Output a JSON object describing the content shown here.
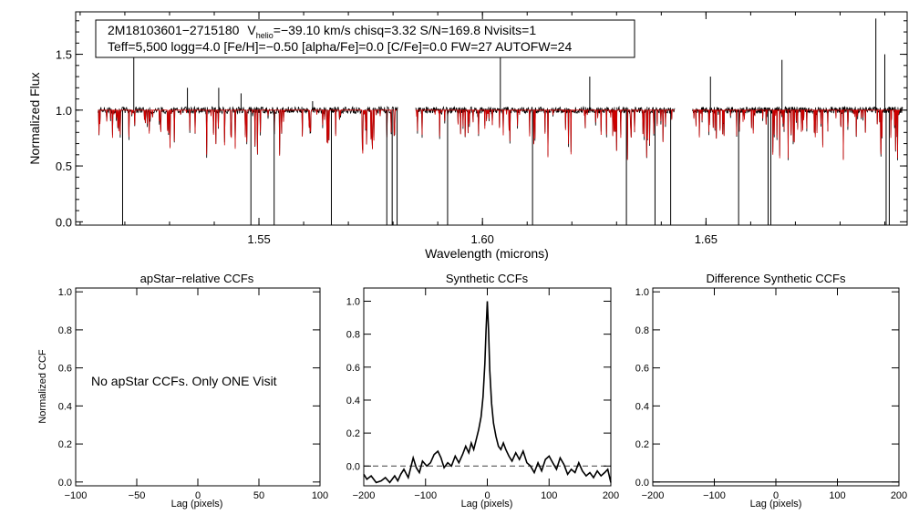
{
  "chart_data": [
    {
      "type": "line",
      "id": "spectrum",
      "info": {
        "star_id": "2M18103601−2715180",
        "vhelio_symbol": "V",
        "vhelio_subscript": "helio",
        "vhelio_rest": "=−39.10 km/s  chisq=3.32  S/N=169.8  Nvisits=1",
        "line2": "Teff=5,500 logg=4.0 [Fe/H]=−0.50 [alpha/Fe]=0.0 [C/Fe]=0.0 FW=27 AUTOFW=24"
      },
      "xlabel": "Wavelength (microns)",
      "ylabel": "Normalized Flux",
      "xlim": [
        1.509,
        1.695
      ],
      "ylim": [
        -0.03,
        1.88
      ],
      "xticks": [
        1.55,
        1.6,
        1.65
      ],
      "xtick_labels": [
        "1.55",
        "1.60",
        "1.65"
      ],
      "yticks": [
        0.0,
        0.5,
        1.0,
        1.5
      ],
      "ytick_labels": [
        "0.0",
        "0.5",
        "1.0",
        "1.5"
      ],
      "chips": [
        [
          1.514,
          1.581
        ],
        [
          1.585,
          1.643
        ],
        [
          1.647,
          1.694
        ]
      ],
      "series": [
        {
          "color": "#000000"
        },
        {
          "color": "#cc0000"
        }
      ],
      "emission_spikes": [
        [
          1.522,
          1.5
        ],
        [
          1.534,
          1.2
        ],
        [
          1.541,
          1.2
        ],
        [
          1.546,
          1.15
        ],
        [
          1.604,
          1.64
        ],
        [
          1.624,
          1.3
        ],
        [
          1.651,
          1.3
        ],
        [
          1.667,
          1.45
        ],
        [
          1.688,
          1.82
        ],
        [
          1.69,
          1.5
        ],
        [
          1.562,
          1.08
        ]
      ],
      "deep_dips": [
        [
          1.5195,
          -0.03
        ],
        [
          1.5482,
          -0.03
        ],
        [
          1.5534,
          -0.03
        ],
        [
          1.5662,
          -0.03
        ],
        [
          1.5786,
          -0.03
        ],
        [
          1.5798,
          -0.03
        ],
        [
          1.5809,
          -0.03
        ],
        [
          1.5922,
          -0.03
        ],
        [
          1.6112,
          -0.03
        ],
        [
          1.6322,
          -0.03
        ],
        [
          1.6386,
          -0.03
        ],
        [
          1.6421,
          -0.03
        ],
        [
          1.6573,
          -0.03
        ],
        [
          1.6639,
          -0.03
        ],
        [
          1.6645,
          -0.03
        ],
        [
          1.6903,
          -0.03
        ],
        [
          1.691,
          -0.03
        ]
      ]
    },
    {
      "type": "line",
      "id": "apstar-ccf",
      "title": "apStar−relative CCFs",
      "xlabel": "Lag (pixels)",
      "ylabel": "Normalized CCF",
      "xlim": [
        -100,
        100
      ],
      "ylim": [
        -0.02,
        1.02
      ],
      "xticks": [
        -100,
        -50,
        0,
        50,
        100
      ],
      "xtick_labels": [
        "−100",
        "−50",
        "0",
        "50",
        "100"
      ],
      "yticks": [
        0.0,
        0.2,
        0.4,
        0.6,
        0.8,
        1.0
      ],
      "ytick_labels": [
        "0.0",
        "0.2",
        "0.4",
        "0.6",
        "0.8",
        "1.0"
      ],
      "note": "No apStar CCFs.  Only ONE Visit",
      "series": []
    },
    {
      "type": "line",
      "id": "synthetic-ccf",
      "title": "Synthetic CCFs",
      "xlabel": "Lag (pixels)",
      "ylabel": "",
      "xlim": [
        -200,
        200
      ],
      "ylim": [
        -0.12,
        1.08
      ],
      "xticks": [
        -200,
        -100,
        0,
        100,
        200
      ],
      "xtick_labels": [
        "−200",
        "−100",
        "0",
        "100",
        "200"
      ],
      "yticks": [
        0.0,
        0.2,
        0.4,
        0.6,
        0.8,
        1.0
      ],
      "ytick_labels": [
        "0.0",
        "0.2",
        "0.4",
        "0.6",
        "0.8",
        "1.0"
      ],
      "reference_line": 0.0,
      "series": [
        {
          "color": "#000000",
          "x": [
            -200,
            -195,
            -188,
            -180,
            -172,
            -165,
            -158,
            -150,
            -145,
            -140,
            -135,
            -128,
            -120,
            -115,
            -110,
            -105,
            -98,
            -92,
            -86,
            -80,
            -75,
            -70,
            -64,
            -58,
            -52,
            -46,
            -40,
            -35,
            -30,
            -26,
            -22,
            -18,
            -14,
            -10,
            -7,
            -4,
            -2,
            0,
            2,
            4,
            7,
            10,
            14,
            18,
            22,
            26,
            30,
            35,
            40,
            46,
            52,
            58,
            64,
            70,
            76,
            82,
            88,
            94,
            100,
            106,
            112,
            118,
            124,
            130,
            136,
            142,
            148,
            154,
            160,
            166,
            172,
            178,
            184,
            190,
            195,
            200
          ],
          "y": [
            -0.05,
            -0.08,
            -0.06,
            -0.1,
            -0.09,
            -0.07,
            -0.1,
            -0.06,
            -0.09,
            -0.05,
            -0.02,
            -0.07,
            0.05,
            -0.01,
            -0.04,
            0.03,
            0.0,
            0.02,
            0.07,
            0.09,
            0.05,
            -0.01,
            0.02,
            0.0,
            0.06,
            0.02,
            0.07,
            0.12,
            0.08,
            0.14,
            0.1,
            0.16,
            0.22,
            0.3,
            0.42,
            0.62,
            0.82,
            1.0,
            0.82,
            0.58,
            0.38,
            0.26,
            0.18,
            0.12,
            0.1,
            0.14,
            0.1,
            0.06,
            0.03,
            0.08,
            0.04,
            0.09,
            0.02,
            0.0,
            -0.04,
            0.02,
            -0.03,
            0.04,
            0.06,
            0.02,
            -0.02,
            0.05,
            0.01,
            -0.05,
            -0.02,
            -0.04,
            0.02,
            -0.03,
            -0.06,
            -0.04,
            -0.07,
            -0.03,
            -0.06,
            -0.04,
            -0.02,
            -0.1
          ]
        }
      ]
    },
    {
      "type": "line",
      "id": "difference-ccf",
      "title": "Difference Synthetic CCFs",
      "xlabel": "Lag (pixels)",
      "ylabel": "",
      "xlim": [
        -200,
        200
      ],
      "ylim": [
        -0.02,
        1.02
      ],
      "xticks": [
        -200,
        -100,
        0,
        100,
        200
      ],
      "xtick_labels": [
        "−200",
        "−100",
        "0",
        "100",
        "200"
      ],
      "yticks": [
        0.0,
        0.2,
        0.4,
        0.6,
        0.8,
        1.0
      ],
      "ytick_labels": [
        "0.0",
        "0.2",
        "0.4",
        "0.6",
        "0.8",
        "1.0"
      ],
      "series": [
        {
          "color": "#000000",
          "x": [
            -200,
            200
          ],
          "y": [
            0.0,
            0.0
          ]
        }
      ]
    }
  ]
}
